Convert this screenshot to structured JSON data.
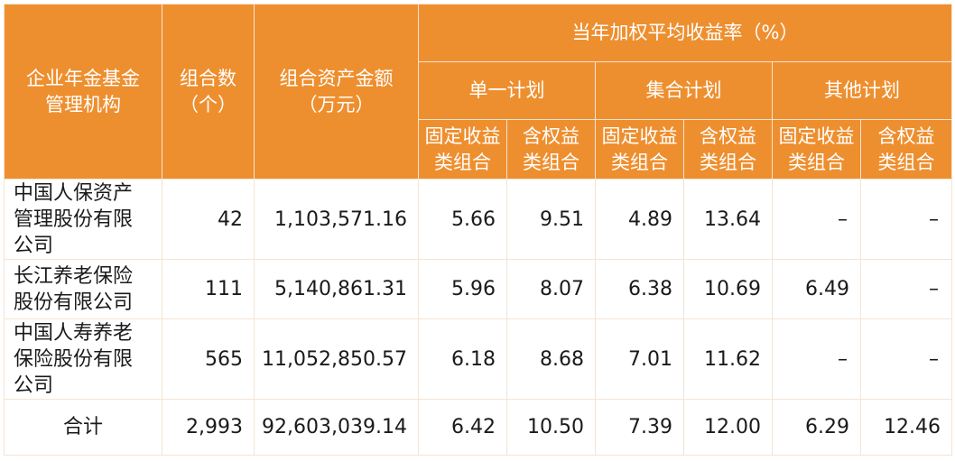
{
  "header": {
    "institution": "企业年金基金\n管理机构",
    "portfolio_count": "组合数\n（个）",
    "asset_amount": "组合资产金额\n（万元）",
    "return_rate": "当年加权平均收益率（%）",
    "plans": [
      "单一计划",
      "集合计划",
      "其他计划"
    ],
    "sub": [
      "固定收益\n类组合",
      "含权益\n类组合"
    ]
  },
  "rows": [
    {
      "name": "中国人保资产\n管理股份有限\n公司",
      "count": "42",
      "amount": "1,103,571.16",
      "values": [
        "5.66",
        "9.51",
        "4.89",
        "13.64",
        "–",
        "–"
      ]
    },
    {
      "name": "长江养老保险\n股份有限公司",
      "count": "111",
      "amount": "5,140,861.31",
      "values": [
        "5.96",
        "8.07",
        "6.38",
        "10.69",
        "6.49",
        "–"
      ]
    },
    {
      "name": "中国人寿养老\n保险股份有限\n公司",
      "count": "565",
      "amount": "11,052,850.57",
      "values": [
        "6.18",
        "8.68",
        "7.01",
        "11.62",
        "–",
        "–"
      ]
    }
  ],
  "total": {
    "label": "合计",
    "count": "2,993",
    "amount": "92,603,039.14",
    "values": [
      "6.42",
      "10.50",
      "7.39",
      "12.00",
      "6.29",
      "12.46"
    ]
  },
  "colors": {
    "header_bg": "#ee8f2f",
    "header_text": "#ffffff",
    "border": "#f3e4d4"
  }
}
